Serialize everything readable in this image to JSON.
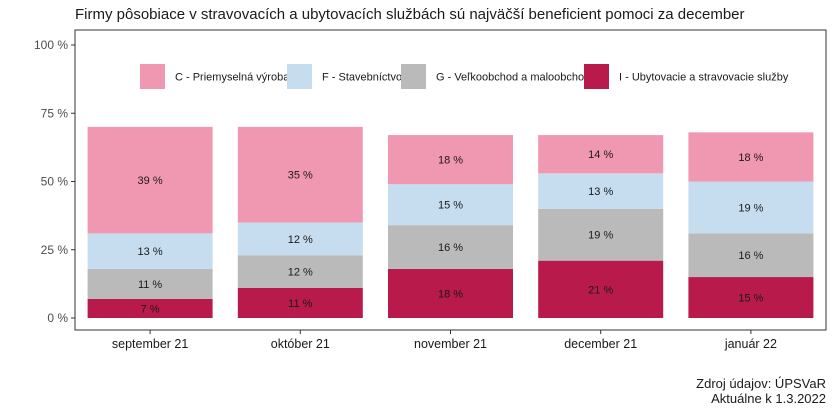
{
  "title": "Firmy pôsobiace v stravovacích a ubytovacích službách sú najväčší beneficient pomoci za december",
  "source_line1": "Zdroj údajov: ÚPSVaR",
  "source_line2": "Aktuálne k 1.3.2022",
  "chart_data": {
    "type": "bar",
    "stacked": true,
    "categories": [
      "september 21",
      "október 21",
      "november 21",
      "december 21",
      "január 22"
    ],
    "series": [
      {
        "name": "I - Ubytovacie a stravovacie služby",
        "color": "#b81a4c",
        "values": [
          7,
          11,
          18,
          21,
          15
        ]
      },
      {
        "name": "G - Veľkoobchod a maloobchod",
        "color": "#bababa",
        "values": [
          11,
          12,
          16,
          19,
          16
        ]
      },
      {
        "name": "F - Stavebníctvo",
        "color": "#c6dcef",
        "values": [
          13,
          12,
          15,
          13,
          19
        ]
      },
      {
        "name": "C - Priemyselná výroba",
        "color": "#f097b1",
        "values": [
          39,
          35,
          18,
          14,
          18
        ]
      }
    ],
    "legend_order": [
      "C - Priemyselná výroba",
      "F - Stavebníctvo",
      "G - Veľkoobchod a maloobchod",
      "I - Ubytovacie a stravovacie služby"
    ],
    "value_suffix": " %",
    "yticks": [
      "0 %",
      "25 %",
      "50 %",
      "75 %",
      "100 %"
    ],
    "ylim": [
      0,
      100
    ],
    "legend_position": "top-inside",
    "grid": false
  }
}
